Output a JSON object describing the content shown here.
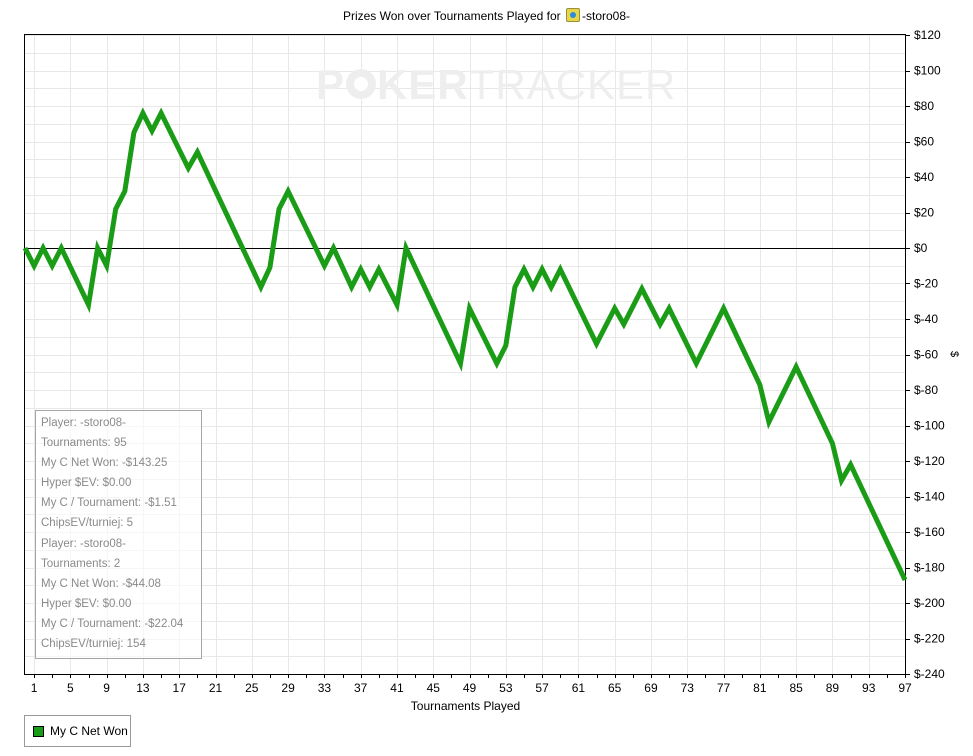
{
  "title": {
    "prefix": "Prizes Won over Tournaments Played for",
    "player_icon": "player-flag-icon",
    "player": "-storo08-"
  },
  "watermark": {
    "left": "P",
    "mid": "KER",
    "right": "TRACKER",
    "icon": "poker-chip-icon"
  },
  "colors": {
    "line": "#1a9c16",
    "zero_line": "#000000",
    "grid": "#e8e8e8",
    "watermark": "#eeeeee"
  },
  "chart_data": {
    "type": "line",
    "title": "Prizes Won over Tournaments Played for -storo08-",
    "xlabel": "Tournaments Played",
    "ylabel": "$",
    "xlim": [
      0,
      97
    ],
    "ylim": [
      -240,
      120
    ],
    "y_axis_position": "right",
    "grid": true,
    "legend_position": "bottom-left",
    "x_ticks": [
      1,
      5,
      9,
      13,
      17,
      21,
      25,
      29,
      33,
      37,
      41,
      45,
      49,
      53,
      57,
      61,
      65,
      69,
      73,
      77,
      81,
      85,
      89,
      93,
      97
    ],
    "y_tick_values": [
      120,
      100,
      80,
      60,
      40,
      20,
      0,
      -20,
      -40,
      -60,
      -80,
      -100,
      -120,
      -140,
      -160,
      -180,
      -200,
      -220,
      -240
    ],
    "y_tick_labels": [
      "$120",
      "$100",
      "$80",
      "$60",
      "$40",
      "$20",
      "$0",
      "$-20",
      "$-40",
      "$-60",
      "$-80",
      "$-100",
      "$-120",
      "$-140",
      "$-160",
      "$-180",
      "$-200",
      "$-220",
      "$-240"
    ],
    "series": [
      {
        "name": "My C Net Won",
        "color": "#1a9c16",
        "x": [
          0,
          1,
          2,
          3,
          4,
          7,
          8,
          9,
          10,
          11,
          12,
          13,
          14,
          15,
          18,
          19,
          26,
          27,
          28,
          29,
          33,
          34,
          36,
          37,
          38,
          39,
          41,
          42,
          48,
          49,
          52,
          53,
          54,
          55,
          56,
          57,
          58,
          59,
          63,
          65,
          66,
          68,
          70,
          71,
          74,
          77,
          81,
          82,
          85,
          89,
          90,
          91,
          97
        ],
        "y": [
          0,
          -10,
          0,
          -10,
          0,
          -32,
          0,
          -10,
          22,
          32,
          65,
          76,
          66,
          76,
          45,
          54,
          -22,
          -11,
          22,
          32,
          -10,
          0,
          -22,
          -12,
          -22,
          -12,
          -32,
          0,
          -65,
          -34,
          -65,
          -55,
          -22,
          -12,
          -22,
          -12,
          -22,
          -12,
          -54,
          -34,
          -43,
          -23,
          -43,
          -34,
          -65,
          -34,
          -77,
          -98,
          -67,
          -110,
          -131,
          -122,
          -187
        ]
      }
    ]
  },
  "stats_box": {
    "lines": [
      "Player: -storo08-",
      "Tournaments: 95",
      "My C Net Won: -$143.25",
      "Hyper $EV: $0.00",
      "My C / Tournament: -$1.51",
      "ChipsEV/turniej: 5",
      "Player: -storo08-",
      "Tournaments: 2",
      "My C Net Won: -$44.08",
      "Hyper $EV: $0.00",
      "My C / Tournament: -$22.04",
      "ChipsEV/turniej: 154"
    ]
  },
  "legend": {
    "label": "My C Net Won",
    "color": "#1a9c16"
  }
}
